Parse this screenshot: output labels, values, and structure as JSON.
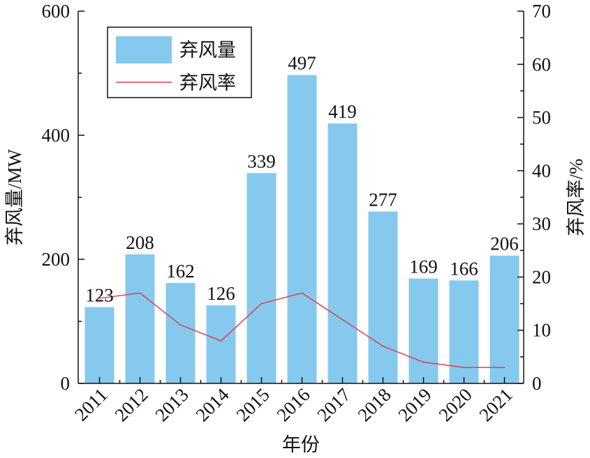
{
  "chart_data": {
    "type": "bar",
    "categories": [
      "2011",
      "2012",
      "2013",
      "2014",
      "2015",
      "2016",
      "2017",
      "2018",
      "2019",
      "2020",
      "2021"
    ],
    "series": [
      {
        "name": "弃风量",
        "type": "bar",
        "axis": "left",
        "color": "#85C9EF",
        "values": [
          123,
          208,
          162,
          126,
          339,
          497,
          419,
          277,
          169,
          166,
          206
        ]
      },
      {
        "name": "弃风率",
        "type": "line",
        "axis": "right",
        "color": "#D9434B",
        "values": [
          16,
          17,
          11,
          8,
          15,
          17,
          12,
          7,
          4,
          3,
          3
        ]
      }
    ],
    "xlabel": "年份",
    "ylabel": "弃风量/MW",
    "y2label": "弃风率/%",
    "ylim": [
      0,
      600
    ],
    "y2lim": [
      0,
      70
    ],
    "yticks": [
      0,
      200,
      400,
      600
    ],
    "y2ticks": [
      0,
      10,
      20,
      30,
      40,
      50,
      60,
      70
    ],
    "legend_position": "top-left",
    "grid": false
  }
}
